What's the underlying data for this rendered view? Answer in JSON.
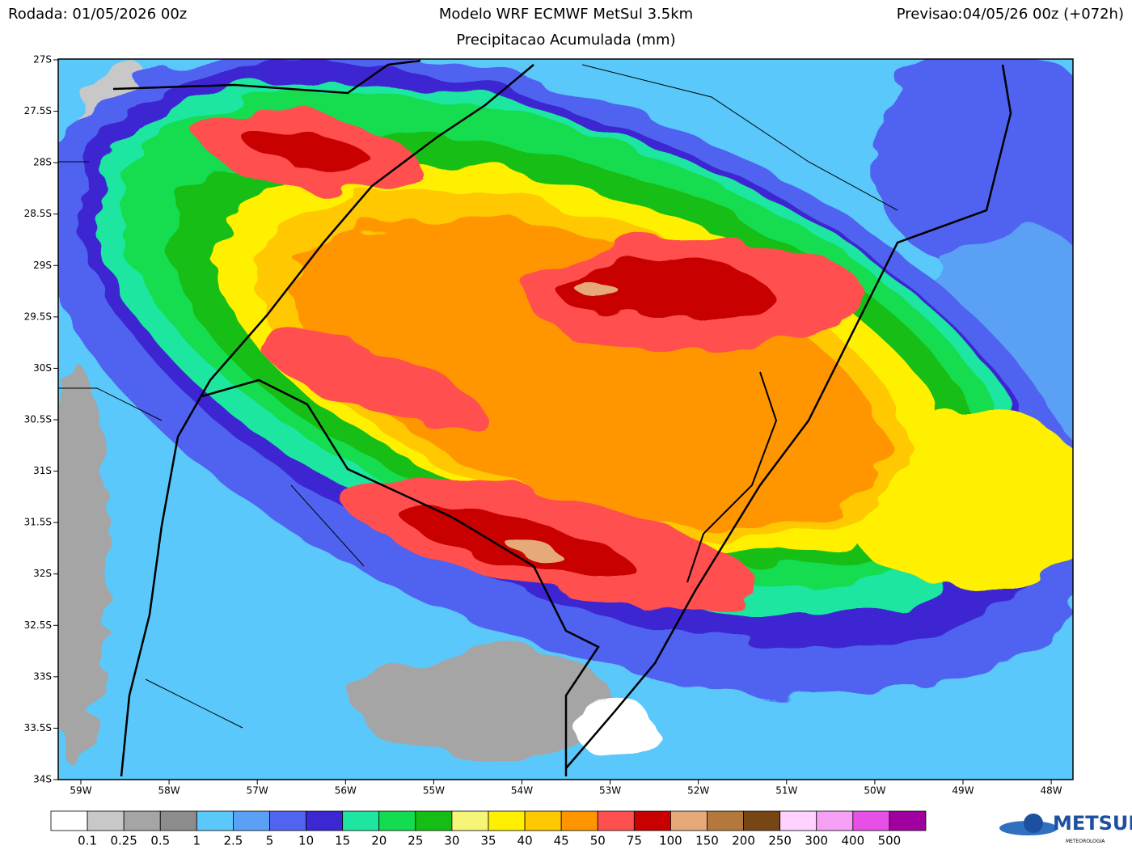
{
  "header": {
    "run": "Rodada: 01/05/2026 00z",
    "title": "Modelo WRF ECMWF MetSul 3.5km",
    "subtitle": "Precipitacao Acumulada (mm)",
    "forecast": "Previsao:04/05/26 00z (+072h)"
  },
  "map": {
    "lat_labels": [
      "27S",
      "27.5S",
      "28S",
      "28.5S",
      "29S",
      "29.5S",
      "30S",
      "30.5S",
      "31S",
      "31.5S",
      "32S",
      "32.5S",
      "33S",
      "33.5S",
      "34S"
    ],
    "lon_labels": [
      "59W",
      "58W",
      "57W",
      "56W",
      "55W",
      "54W",
      "53W",
      "52W",
      "51W",
      "50W",
      "49W",
      "48W"
    ]
  },
  "legend": {
    "colors": [
      "#ffffff",
      "#c8c8c8",
      "#a5a5a5",
      "#8c8c8c",
      "#5ac8fa",
      "#5aa0f5",
      "#5064f0",
      "#3c28d2",
      "#1ee6a0",
      "#14dc50",
      "#14be14",
      "#f5f578",
      "#fff000",
      "#ffc800",
      "#ff9600",
      "#ff5050",
      "#c80000",
      "#e6aa78",
      "#b4783c",
      "#784614",
      "#ffd2ff",
      "#f5a0f5",
      "#e650e6",
      "#a000a0"
    ],
    "labels": [
      "0.1",
      "0.25",
      "0.5",
      "1",
      "2.5",
      "5",
      "10",
      "15",
      "20",
      "25",
      "30",
      "35",
      "40",
      "45",
      "50",
      "75",
      "100",
      "150",
      "200",
      "250",
      "300",
      "400",
      "500"
    ]
  },
  "logo": {
    "name": "METSUL",
    "tagline": "METEOROLOGIA"
  }
}
